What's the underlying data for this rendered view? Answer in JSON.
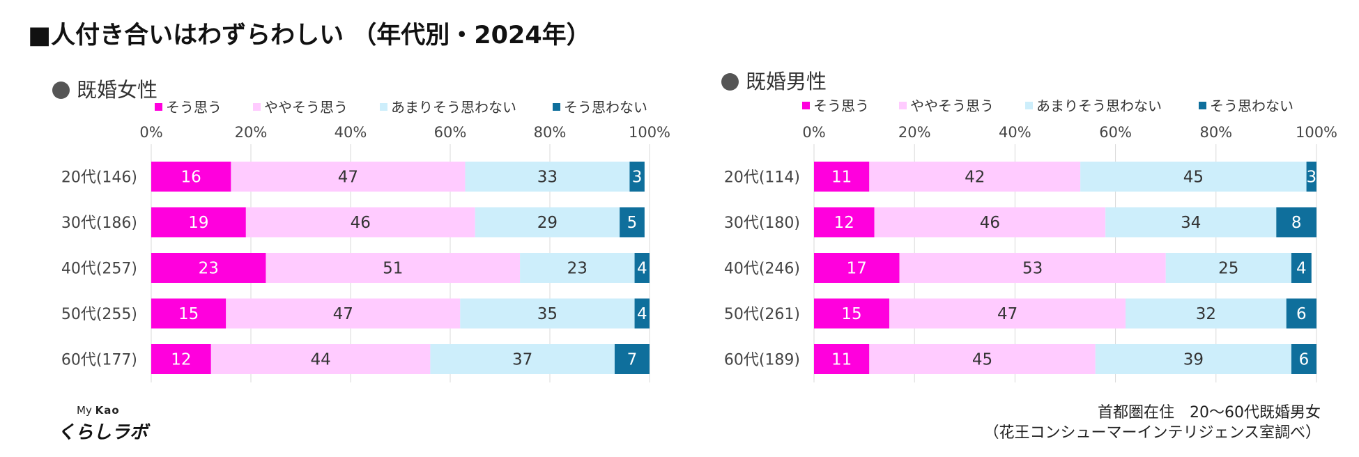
{
  "title": "■人付き合いはわずらわしい （年代別・2024年）",
  "legend_labels": [
    "そう思う",
    "ややそう思う",
    "あまりそう思わない",
    "そう思わない"
  ],
  "series_colors": [
    "#ff00dd",
    "#ffcbff",
    "#cdeefb",
    "#0f6f9c"
  ],
  "note": {
    "line1": "首都圏在住　20～60代既婚男女",
    "line2": "（花王コンシューマーインテリジェンス室調べ）"
  },
  "logo": {
    "prefix": "My",
    "brand": "Kao",
    "name": "くらしラボ"
  },
  "chart_data": [
    {
      "type": "bar",
      "orientation": "horizontal",
      "stacked": true,
      "title": "既婚女性",
      "categories": [
        "20代(146)",
        "30代(186)",
        "40代(257)",
        "50代(255)",
        "60代(177)"
      ],
      "series": [
        {
          "name": "そう思う",
          "values": [
            16,
            19,
            23,
            15,
            12
          ]
        },
        {
          "name": "ややそう思う",
          "values": [
            47,
            46,
            51,
            47,
            44
          ]
        },
        {
          "name": "あまりそう思わない",
          "values": [
            33,
            29,
            23,
            35,
            37
          ]
        },
        {
          "name": "そう思わない",
          "values": [
            3,
            5,
            4,
            4,
            7
          ]
        }
      ],
      "xlim": [
        0,
        100
      ],
      "xticks": [
        "0%",
        "20%",
        "40%",
        "60%",
        "80%",
        "100%"
      ],
      "grid": true,
      "legend": "top"
    },
    {
      "type": "bar",
      "orientation": "horizontal",
      "stacked": true,
      "title": "既婚男性",
      "categories": [
        "20代(114)",
        "30代(180)",
        "40代(246)",
        "50代(261)",
        "60代(189)"
      ],
      "series": [
        {
          "name": "そう思う",
          "values": [
            11,
            12,
            17,
            15,
            11
          ]
        },
        {
          "name": "ややそう思う",
          "values": [
            42,
            46,
            53,
            47,
            45
          ]
        },
        {
          "name": "あまりそう思わない",
          "values": [
            45,
            34,
            25,
            32,
            39
          ]
        },
        {
          "name": "そう思わない",
          "values": [
            3,
            8,
            4,
            6,
            6
          ]
        }
      ],
      "xlim": [
        0,
        100
      ],
      "xticks": [
        "0%",
        "20%",
        "40%",
        "60%",
        "80%",
        "100%"
      ],
      "grid": true,
      "legend": "top"
    }
  ]
}
